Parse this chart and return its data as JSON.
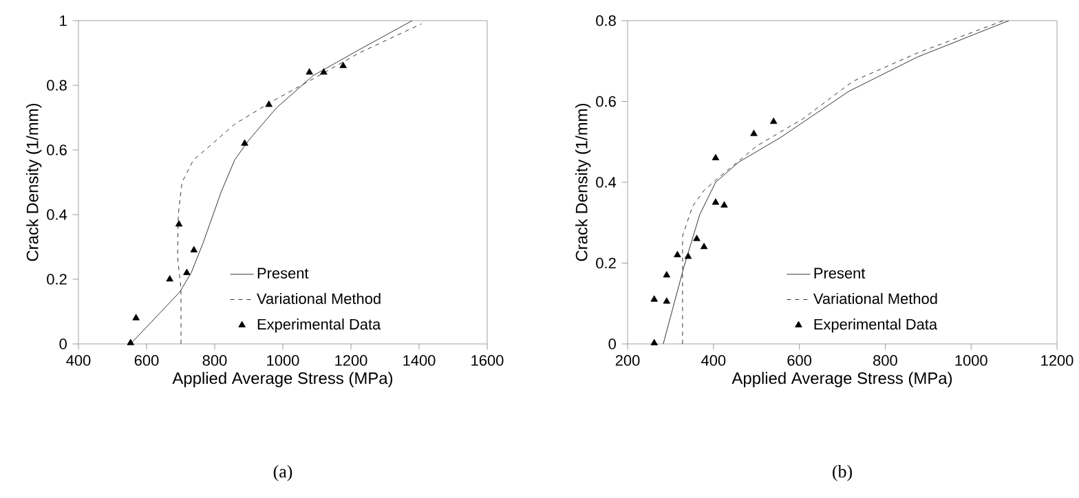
{
  "chart_data": [
    {
      "type": "line",
      "title": "(a)",
      "xlabel": "Applied Average Stress (MPa)",
      "ylabel": "Crack Density (1/mm)",
      "xlim": [
        400,
        1600
      ],
      "ylim": [
        0,
        1
      ],
      "xticks": [
        400,
        600,
        800,
        1000,
        1200,
        1400,
        1600
      ],
      "yticks": [
        0,
        0.2,
        0.4,
        0.6,
        0.8,
        1
      ],
      "legend": "bottom right",
      "series": [
        {
          "name": "Present",
          "color": "#000000",
          "line_style": "solid",
          "marker": "none",
          "x": [
            553,
            697,
            731,
            765,
            819,
            859,
            900,
            981,
            1089,
            1224,
            1380
          ],
          "values": [
            0,
            0.16,
            0.22,
            0.31,
            0.47,
            0.57,
            0.63,
            0.73,
            0.83,
            0.91,
            1.0
          ]
        },
        {
          "name": "Variational Method",
          "color": "#000000",
          "line_style": "dashed",
          "marker": "none",
          "x": [
            701,
            701,
            691,
            693,
            704,
            738,
            772,
            859,
            968,
            1089,
            1224,
            1407
          ],
          "values": [
            0,
            0.17,
            0.27,
            0.4,
            0.5,
            0.57,
            0.6,
            0.68,
            0.75,
            0.82,
            0.9,
            0.99
          ]
        },
        {
          "name": "Experimental Data",
          "type": "scatter",
          "color": "#000000",
          "marker": "triangle",
          "x": [
            553,
            569,
            668,
            695,
            718,
            739,
            888,
            959,
            1078,
            1120,
            1177
          ],
          "values": [
            0.003,
            0.08,
            0.2,
            0.37,
            0.22,
            0.29,
            0.62,
            0.74,
            0.84,
            0.84,
            0.86
          ]
        }
      ]
    },
    {
      "type": "line",
      "title": "(b)",
      "xlabel": "Applied Average Stress (MPa)",
      "ylabel": "Crack Density (1/mm)",
      "xlim": [
        200,
        1200
      ],
      "ylim": [
        0,
        0.8
      ],
      "xticks": [
        200,
        400,
        600,
        800,
        1000,
        1200
      ],
      "yticks": [
        0,
        0.2,
        0.4,
        0.6,
        0.8
      ],
      "legend": "bottom right",
      "series": [
        {
          "name": "Present",
          "color": "#000000",
          "line_style": "solid",
          "marker": "none",
          "x": [
            283,
            331,
            368,
            405,
            459,
            555,
            715,
            875,
            1088
          ],
          "values": [
            0,
            0.19,
            0.32,
            0.4,
            0.45,
            0.51,
            0.625,
            0.71,
            0.8
          ]
        },
        {
          "name": "Variational Method",
          "color": "#000000",
          "line_style": "dashed",
          "marker": "none",
          "x": [
            328,
            328,
            351,
            378,
            416,
            501,
            608,
            725,
            875,
            1075
          ],
          "values": [
            0,
            0.267,
            0.34,
            0.38,
            0.415,
            0.49,
            0.557,
            0.65,
            0.72,
            0.8
          ]
        },
        {
          "name": "Experimental Data",
          "type": "scatter",
          "color": "#000000",
          "marker": "triangle",
          "x": [
            262,
            262,
            291,
            291,
            316,
            341,
            361,
            378,
            405,
            405,
            425,
            494,
            540
          ],
          "values": [
            0.002,
            0.11,
            0.105,
            0.17,
            0.22,
            0.216,
            0.26,
            0.24,
            0.46,
            0.35,
            0.343,
            0.52,
            0.55
          ]
        }
      ]
    }
  ]
}
